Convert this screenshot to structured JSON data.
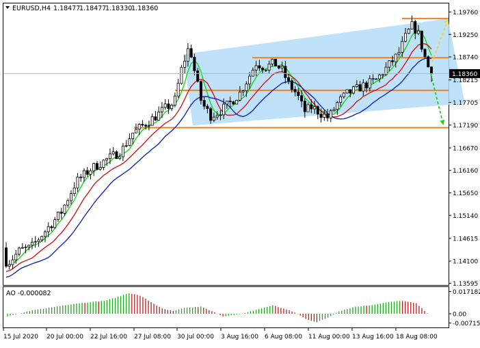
{
  "chart_data": {
    "type": "candlestick",
    "header": {
      "symbol": "EURUSD,H4",
      "values": [
        "1.18477",
        "1.18477",
        "1.18330",
        "1.18360"
      ]
    },
    "current_price": 1.1836,
    "current_price_label": "1.18360",
    "main_panel": {
      "ylim": [
        1.13595,
        1.1976
      ],
      "y_ticks": [
        1.1976,
        1.1925,
        1.1874,
        1.18215,
        1.17705,
        1.1719,
        1.1667,
        1.1616,
        1.1565,
        1.1514,
        1.14615,
        1.141,
        1.13595
      ],
      "y_tick_labels": [
        "1.19760",
        "1.19250",
        "1.18740",
        "1.18215",
        "1.17705",
        "1.17190",
        "1.16670",
        "1.16160",
        "1.15650",
        "1.15140",
        "1.14615",
        "1.14100",
        "1.13595"
      ],
      "horizontal_levels": [
        1.1961,
        1.1872,
        1.1798,
        1.1713
      ],
      "channel": {
        "upper": [
          1.188,
          1.1961
        ],
        "lower": [
          1.1718,
          1.1768
        ]
      },
      "forecast_arrows": [
        {
          "color": "#f5d142",
          "from": 1.1862,
          "to": 1.1958
        },
        {
          "color": "#22cc22",
          "from": 1.1836,
          "to": 1.1722
        }
      ],
      "colors": {
        "channel_fill": "#b4dcf8",
        "levels": "#f47f20",
        "candle": "#000000",
        "ma_fast": "#16d616",
        "ma_mid": "#cc1a1a",
        "ma_slow": "#1028b8"
      }
    },
    "oscillator": {
      "name": "AO",
      "value_label": "AO -0.000082",
      "ylim": [
        -0.0095,
        0.0185
      ],
      "y_ticks": [
        0.017182,
        0.0,
        -0.007155
      ],
      "y_tick_labels": [
        "0.017182",
        "0.00",
        "-0.007155"
      ],
      "colors": {
        "up": "#1aa81a",
        "down": "#c41818"
      }
    },
    "x_tick_labels": [
      "15 Jul 2020",
      "20 Jul 00:00",
      "22 Jul 16:00",
      "27 Jul 08:00",
      "30 Jul 00:00",
      "3 Aug 16:00",
      "6 Aug 08:00",
      "11 Aug 00:00",
      "13 Aug 16:00",
      "18 Aug 08:00"
    ]
  }
}
